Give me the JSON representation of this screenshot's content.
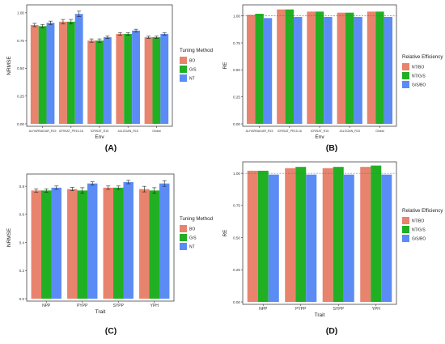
{
  "colors": {
    "series1": "#e8836e",
    "series2": "#21b024",
    "series3": "#5b8cf5",
    "panel_bg": "#ffffff",
    "border": "#444444"
  },
  "chart_data": [
    {
      "panel": "(A)",
      "type": "bar",
      "xlabel": "Env",
      "ylabel": "NRMSE",
      "categories": [
        "ALIYARNAGAR_R15",
        "ICRISAT_PR15-16",
        "ICRISAT_R15",
        "JALGOAN_R15",
        "Global"
      ],
      "ylim": [
        0,
        1.05
      ],
      "yticks": [
        "0.00",
        "0.25",
        "0.50",
        "0.75",
        "1.00"
      ],
      "legend_title": "Tuning Method",
      "error_bars": true,
      "series": [
        {
          "name": "BO",
          "values": [
            0.89,
            0.92,
            0.75,
            0.81,
            0.78
          ],
          "err": [
            0.015,
            0.02,
            0.015,
            0.012,
            0.01
          ]
        },
        {
          "name": "G/S",
          "values": [
            0.88,
            0.92,
            0.75,
            0.81,
            0.78
          ],
          "err": [
            0.015,
            0.02,
            0.015,
            0.012,
            0.01
          ]
        },
        {
          "name": "NT",
          "values": [
            0.91,
            0.99,
            0.78,
            0.84,
            0.81
          ],
          "err": [
            0.015,
            0.025,
            0.012,
            0.012,
            0.01
          ]
        }
      ]
    },
    {
      "panel": "(B)",
      "type": "bar",
      "xlabel": "Env",
      "ylabel": "RE",
      "categories": [
        "ALIYARNAGAR_R15",
        "ICRISAT_PR15-16",
        "ICRISAT_R15",
        "JALGOAN_R15",
        "Global"
      ],
      "ylim": [
        0,
        1.08
      ],
      "yticks": [
        "0.00",
        "0.25",
        "0.50",
        "0.75",
        "1.00"
      ],
      "legend_title": "Relative Efficiency",
      "ref_line": 1.0,
      "series": [
        {
          "name": "NT/BO",
          "values": [
            1.01,
            1.06,
            1.04,
            1.03,
            1.04
          ]
        },
        {
          "name": "NT/G/S",
          "values": [
            1.02,
            1.06,
            1.04,
            1.03,
            1.04
          ]
        },
        {
          "name": "G/S/BO",
          "values": [
            0.98,
            0.99,
            0.99,
            0.99,
            0.99
          ]
        }
      ]
    },
    {
      "panel": "(C)",
      "type": "bar",
      "xlabel": "Trait",
      "ylabel": "NRMSE",
      "categories": [
        "NPP",
        "PYPP",
        "SYPP",
        "YPH"
      ],
      "ylim": [
        0,
        0.87
      ],
      "yticks": [
        "0.0",
        "0.2",
        "0.4",
        "0.6",
        "0.8"
      ],
      "legend_title": "Tuning Method",
      "error_bars": true,
      "series": [
        {
          "name": "BO",
          "values": [
            0.77,
            0.78,
            0.79,
            0.78
          ],
          "err": [
            0.012,
            0.012,
            0.012,
            0.02
          ]
        },
        {
          "name": "G/S",
          "values": [
            0.77,
            0.77,
            0.79,
            0.77
          ],
          "err": [
            0.012,
            0.02,
            0.012,
            0.02
          ]
        },
        {
          "name": "NT",
          "values": [
            0.79,
            0.82,
            0.83,
            0.82
          ],
          "err": [
            0.012,
            0.012,
            0.012,
            0.02
          ]
        }
      ]
    },
    {
      "panel": "(D)",
      "type": "bar",
      "xlabel": "Trait",
      "ylabel": "RE",
      "categories": [
        "NPP",
        "PYPP",
        "SYPP",
        "YPH"
      ],
      "ylim": [
        0,
        1.07
      ],
      "yticks": [
        "0.00",
        "0.25",
        "0.50",
        "0.75",
        "1.00"
      ],
      "legend_title": "Relative Efficiency",
      "ref_line": 1.0,
      "series": [
        {
          "name": "NT/BO",
          "values": [
            1.02,
            1.04,
            1.04,
            1.05
          ]
        },
        {
          "name": "NT/G/S",
          "values": [
            1.02,
            1.05,
            1.05,
            1.06
          ]
        },
        {
          "name": "G/S/BO",
          "values": [
            0.99,
            0.99,
            0.99,
            0.99
          ]
        }
      ]
    }
  ]
}
